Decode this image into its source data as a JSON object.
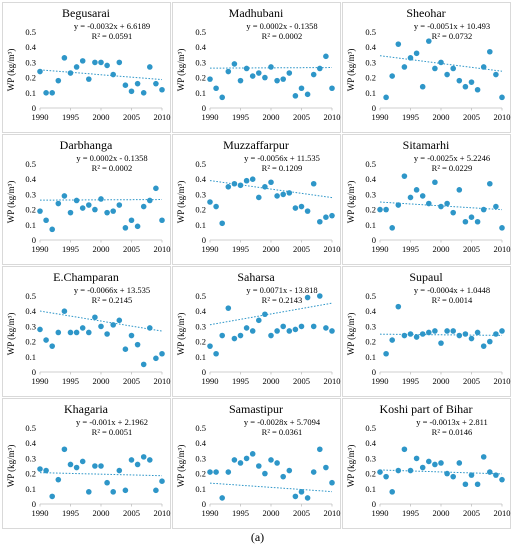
{
  "figure_label": "(a)",
  "chart_data": [
    {
      "type": "scatter",
      "title": "Begusarai",
      "equation": "y = -0.0032x + 6.6189",
      "r2": "R² = 0.0591",
      "slope": -0.0032,
      "intercept": 6.6189,
      "x": [
        1990,
        1991,
        1992,
        1993,
        1994,
        1995,
        1996,
        1997,
        1998,
        1999,
        2000,
        2001,
        2002,
        2003,
        2004,
        2005,
        2006,
        2007,
        2008,
        2009,
        2010
      ],
      "y": [
        0.24,
        0.1,
        0.1,
        0.18,
        0.33,
        0.23,
        0.27,
        0.31,
        0.19,
        0.3,
        0.3,
        0.28,
        0.22,
        0.3,
        0.15,
        0.11,
        0.16,
        0.1,
        0.27,
        0.16,
        0.12
      ],
      "ylabel": "WP (kg/m³)",
      "xlim": [
        1990,
        2010
      ],
      "ylim": [
        0,
        0.5
      ],
      "xticks": [
        1990,
        1995,
        2000,
        2005,
        2010
      ],
      "yticks": [
        0,
        0.1,
        0.2,
        0.3,
        0.4,
        0.5
      ]
    },
    {
      "type": "scatter",
      "title": "Madhubani",
      "equation": "y = 0.0002x - 0.1358",
      "r2": "R² = 0.0002",
      "slope": 0.0002,
      "intercept": -0.1358,
      "x": [
        1990,
        1991,
        1992,
        1993,
        1994,
        1995,
        1996,
        1997,
        1998,
        1999,
        2000,
        2001,
        2002,
        2003,
        2004,
        2005,
        2006,
        2007,
        2008,
        2009,
        2010
      ],
      "y": [
        0.19,
        0.13,
        0.07,
        0.24,
        0.29,
        0.18,
        0.26,
        0.21,
        0.23,
        0.2,
        0.27,
        0.18,
        0.19,
        0.23,
        0.08,
        0.13,
        0.09,
        0.22,
        0.26,
        0.34,
        0.13
      ],
      "ylabel": "WP (kg/m³)",
      "xlim": [
        1990,
        2010
      ],
      "ylim": [
        0,
        0.5
      ],
      "xticks": [
        1990,
        1995,
        2000,
        2005,
        2010
      ],
      "yticks": [
        0,
        0.1,
        0.2,
        0.3,
        0.4,
        0.5
      ]
    },
    {
      "type": "scatter",
      "title": "Sheohar",
      "equation": "y = -0.0051x + 10.493",
      "r2": "R² = 0.0732",
      "slope": -0.0051,
      "intercept": 10.493,
      "x": [
        1991,
        1992,
        1993,
        1994,
        1995,
        1996,
        1997,
        1998,
        1999,
        2000,
        2001,
        2002,
        2003,
        2004,
        2005,
        2006,
        2007,
        2008,
        2009,
        2010
      ],
      "y": [
        0.07,
        0.21,
        0.42,
        0.27,
        0.33,
        0.36,
        0.14,
        0.44,
        0.26,
        0.3,
        0.22,
        0.26,
        0.18,
        0.14,
        0.17,
        0.12,
        0.27,
        0.37,
        0.22,
        0.07
      ],
      "ylabel": "WP (kg/m³)",
      "xlim": [
        1990,
        2010
      ],
      "ylim": [
        0,
        0.5
      ],
      "xticks": [
        1990,
        1995,
        2000,
        2005,
        2010
      ],
      "yticks": [
        0,
        0.1,
        0.2,
        0.3,
        0.4,
        0.5
      ]
    },
    {
      "type": "scatter",
      "title": "Darbhanga",
      "equation": "y = 0.0002x - 0.1358",
      "r2": "R² = 0.0002",
      "slope": 0.0002,
      "intercept": -0.1358,
      "x": [
        1990,
        1991,
        1992,
        1993,
        1994,
        1995,
        1996,
        1997,
        1998,
        1999,
        2000,
        2001,
        2002,
        2003,
        2004,
        2005,
        2006,
        2007,
        2008,
        2009,
        2010
      ],
      "y": [
        0.19,
        0.13,
        0.07,
        0.24,
        0.29,
        0.18,
        0.26,
        0.21,
        0.23,
        0.2,
        0.27,
        0.18,
        0.19,
        0.23,
        0.08,
        0.13,
        0.09,
        0.22,
        0.26,
        0.34,
        0.13
      ],
      "ylabel": "WP (kg/m³)",
      "xlim": [
        1990,
        2010
      ],
      "ylim": [
        0,
        0.5
      ],
      "xticks": [
        1990,
        1995,
        2000,
        2005,
        2010
      ],
      "yticks": [
        0,
        0.1,
        0.2,
        0.3,
        0.4,
        0.5
      ]
    },
    {
      "type": "scatter",
      "title": "Muzzaffarpur",
      "equation": "y = -0.0056x + 11.535",
      "r2": "R² = 0.1209",
      "slope": -0.0056,
      "intercept": 11.535,
      "x": [
        1990,
        1991,
        1992,
        1993,
        1994,
        1995,
        1996,
        1997,
        1998,
        1999,
        2000,
        2001,
        2002,
        2003,
        2004,
        2005,
        2006,
        2007,
        2008,
        2009,
        2010
      ],
      "y": [
        0.25,
        0.22,
        0.11,
        0.35,
        0.37,
        0.36,
        0.39,
        0.4,
        0.28,
        0.35,
        0.38,
        0.29,
        0.3,
        0.31,
        0.21,
        0.22,
        0.19,
        0.37,
        0.12,
        0.15,
        0.16
      ],
      "ylabel": "WP (kg/m³)",
      "xlim": [
        1990,
        2010
      ],
      "ylim": [
        0,
        0.5
      ],
      "xticks": [
        1990,
        1995,
        2000,
        2005,
        2010
      ],
      "yticks": [
        0,
        0.1,
        0.2,
        0.3,
        0.4,
        0.5
      ]
    },
    {
      "type": "scatter",
      "title": "Sitamarhi",
      "equation": "y = -0.0025x + 5.2246",
      "r2": "R² = 0.0229",
      "slope": -0.0025,
      "intercept": 5.2246,
      "x": [
        1990,
        1991,
        1992,
        1993,
        1994,
        1995,
        1996,
        1997,
        1998,
        1999,
        2000,
        2001,
        2002,
        2003,
        2004,
        2005,
        2006,
        2007,
        2008,
        2009,
        2010
      ],
      "y": [
        0.2,
        0.2,
        0.08,
        0.23,
        0.42,
        0.28,
        0.33,
        0.29,
        0.24,
        0.38,
        0.22,
        0.24,
        0.18,
        0.33,
        0.12,
        0.15,
        0.12,
        0.2,
        0.37,
        0.22,
        0.08
      ],
      "ylabel": "WP (kg/m³)",
      "xlim": [
        1990,
        2010
      ],
      "ylim": [
        0,
        0.5
      ],
      "xticks": [
        1990,
        1995,
        2000,
        2005,
        2010
      ],
      "yticks": [
        0,
        0.1,
        0.2,
        0.3,
        0.4,
        0.5
      ]
    },
    {
      "type": "scatter",
      "title": "E.Champaran",
      "equation": "y = -0.0066x + 13.535",
      "r2": "R² = 0.2145",
      "slope": -0.0066,
      "intercept": 13.535,
      "x": [
        1990,
        1991,
        1992,
        1993,
        1994,
        1995,
        1996,
        1997,
        1998,
        1999,
        2000,
        2001,
        2002,
        2003,
        2004,
        2005,
        2006,
        2007,
        2008,
        2009,
        2010
      ],
      "y": [
        0.28,
        0.21,
        0.17,
        0.26,
        0.4,
        0.26,
        0.26,
        0.29,
        0.26,
        0.36,
        0.3,
        0.25,
        0.31,
        0.34,
        0.15,
        0.24,
        0.18,
        0.05,
        0.29,
        0.09,
        0.12
      ],
      "ylabel": "WP (kg/m³)",
      "xlim": [
        1990,
        2010
      ],
      "ylim": [
        0,
        0.5
      ],
      "xticks": [
        1990,
        1995,
        2000,
        2005,
        2010
      ],
      "yticks": [
        0,
        0.1,
        0.2,
        0.3,
        0.4,
        0.5
      ]
    },
    {
      "type": "scatter",
      "title": "Saharsa",
      "equation": "y = 0.0071x - 13.818",
      "r2": "R² = 0.2143",
      "slope": 0.0071,
      "intercept": -13.818,
      "x": [
        1990,
        1991,
        1992,
        1993,
        1994,
        1995,
        1996,
        1997,
        1998,
        1999,
        2000,
        2001,
        2002,
        2003,
        2004,
        2005,
        2006,
        2007,
        2008,
        2009,
        2010
      ],
      "y": [
        0.17,
        0.12,
        0.24,
        0.42,
        0.22,
        0.24,
        0.29,
        0.27,
        0.34,
        0.38,
        0.24,
        0.27,
        0.3,
        0.27,
        0.28,
        0.3,
        0.49,
        0.3,
        0.5,
        0.29,
        0.27
      ],
      "ylabel": "WP (kg/m³)",
      "xlim": [
        1990,
        2010
      ],
      "ylim": [
        0,
        0.5
      ],
      "xticks": [
        1990,
        1995,
        2000,
        2005,
        2010
      ],
      "yticks": [
        0,
        0.1,
        0.2,
        0.3,
        0.4,
        0.5
      ]
    },
    {
      "type": "scatter",
      "title": "Supaul",
      "equation": "y = -0.0004x + 1.0448",
      "r2": "R² = 0.0014",
      "slope": -0.0004,
      "intercept": 1.0448,
      "x": [
        1991,
        1992,
        1993,
        1994,
        1995,
        1996,
        1997,
        1998,
        1999,
        2000,
        2001,
        2002,
        2003,
        2004,
        2005,
        2006,
        2007,
        2008,
        2009,
        2010
      ],
      "y": [
        0.12,
        0.21,
        0.43,
        0.24,
        0.25,
        0.23,
        0.25,
        0.26,
        0.27,
        0.19,
        0.27,
        0.27,
        0.24,
        0.25,
        0.22,
        0.26,
        0.17,
        0.2,
        0.25,
        0.27
      ],
      "ylabel": "WP (kg/m³)",
      "xlim": [
        1990,
        2010
      ],
      "ylim": [
        0,
        0.5
      ],
      "xticks": [
        1990,
        1995,
        2000,
        2005,
        2010
      ],
      "yticks": [
        0,
        0.1,
        0.2,
        0.3,
        0.4,
        0.5
      ]
    },
    {
      "type": "scatter",
      "title": "Khagaria",
      "equation": "y = -0.001x + 2.1962",
      "r2": "R² = 0.0051",
      "slope": -0.001,
      "intercept": 2.1962,
      "x": [
        1990,
        1991,
        1992,
        1993,
        1994,
        1995,
        1996,
        1997,
        1998,
        1999,
        2000,
        2001,
        2002,
        2003,
        2004,
        2005,
        2006,
        2007,
        2008,
        2009,
        2010
      ],
      "y": [
        0.23,
        0.22,
        0.05,
        0.16,
        0.36,
        0.26,
        0.24,
        0.28,
        0.08,
        0.25,
        0.25,
        0.14,
        0.08,
        0.22,
        0.09,
        0.29,
        0.26,
        0.31,
        0.29,
        0.09,
        0.15
      ],
      "ylabel": "WP (kg/m³)",
      "xlim": [
        1990,
        2010
      ],
      "ylim": [
        0,
        0.5
      ],
      "xticks": [
        1990,
        1995,
        2000,
        2005,
        2010
      ],
      "yticks": [
        0,
        0.1,
        0.2,
        0.3,
        0.4,
        0.5
      ]
    },
    {
      "type": "scatter",
      "title": "Samastipur",
      "equation": "y = -0.0028x + 5.7094",
      "r2": "R² = 0.0361",
      "slope": -0.0028,
      "intercept": 5.7094,
      "x": [
        1990,
        1991,
        1992,
        1993,
        1994,
        1995,
        1996,
        1997,
        1998,
        1999,
        2000,
        2001,
        2002,
        2003,
        2004,
        2005,
        2006,
        2007,
        2008,
        2009,
        2010
      ],
      "y": [
        0.21,
        0.21,
        0.04,
        0.21,
        0.29,
        0.27,
        0.3,
        0.33,
        0.25,
        0.2,
        0.29,
        0.27,
        0.18,
        0.22,
        0.05,
        0.08,
        0.04,
        0.21,
        0.36,
        0.24,
        0.14
      ],
      "ylabel": "WP (kg/m³)",
      "xlim": [
        1990,
        2010
      ],
      "ylim": [
        0,
        0.5
      ],
      "xticks": [
        1990,
        1995,
        2000,
        2005,
        2010
      ],
      "yticks": [
        0,
        0.1,
        0.2,
        0.3,
        0.4,
        0.5
      ]
    },
    {
      "type": "scatter",
      "title": "Koshi part of Bihar",
      "equation": "y = -0.0013x + 2.811",
      "r2": "R² = 0.0146",
      "slope": -0.0013,
      "intercept": 2.811,
      "x": [
        1990,
        1991,
        1992,
        1993,
        1994,
        1995,
        1996,
        1997,
        1998,
        1999,
        2000,
        2001,
        2002,
        2003,
        2004,
        2005,
        2006,
        2007,
        2008,
        2009,
        2010
      ],
      "y": [
        0.21,
        0.18,
        0.08,
        0.22,
        0.36,
        0.22,
        0.3,
        0.24,
        0.28,
        0.26,
        0.27,
        0.2,
        0.18,
        0.27,
        0.13,
        0.19,
        0.13,
        0.31,
        0.21,
        0.19,
        0.16
      ],
      "ylabel": "WP (kg/m³)",
      "xlim": [
        1990,
        2010
      ],
      "ylim": [
        0,
        0.5
      ],
      "xticks": [
        1990,
        1995,
        2000,
        2005,
        2010
      ],
      "yticks": [
        0,
        0.1,
        0.2,
        0.3,
        0.4,
        0.5
      ]
    }
  ]
}
